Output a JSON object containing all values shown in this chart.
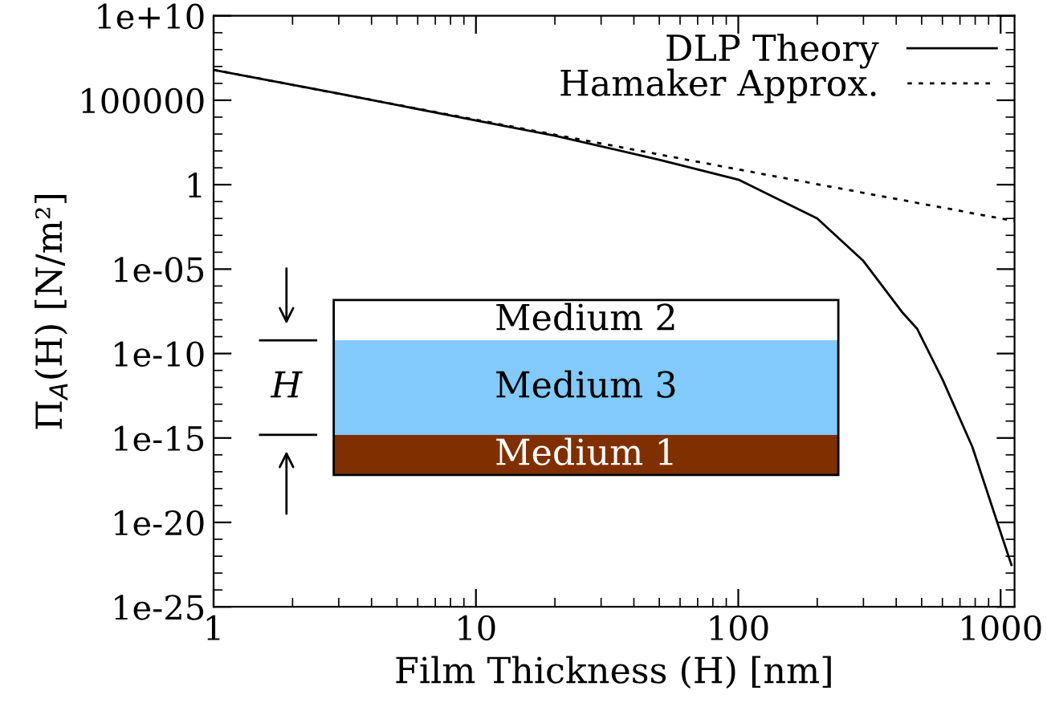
{
  "chart_data": {
    "type": "line",
    "xlabel": "Film Thickness (H) [nm]",
    "ylabel": "Π$_{A}$(H) [N/m²]",
    "log": "xy",
    "xlim": [
      1,
      1130
    ],
    "ylim": [
      1e-25,
      10000000000.0
    ],
    "xticks": [
      1,
      10,
      100,
      1000
    ],
    "yticks": [
      {
        "value": 10000000000.0,
        "label": "1e+10"
      },
      100000,
      1,
      {
        "value": 1e-05,
        "label": "1e-05"
      },
      {
        "value": 1e-10,
        "label": "1e-10"
      },
      {
        "value": 1e-15,
        "label": "1e-15"
      },
      {
        "value": 1e-20,
        "label": "1e-20"
      },
      {
        "value": 1e-25,
        "label": "1e-25"
      }
    ],
    "grid": false,
    "legend": "top right",
    "series": [
      {
        "name": "DLP Theory",
        "color": "#000000",
        "line_style": "solid",
        "x": [
          1,
          3,
          10,
          20,
          50,
          100,
          200,
          300,
          420,
          480,
          600,
          780,
          1010,
          1100
        ],
        "values": [
          6300000.0,
          250000.0,
          6300.0,
          800.0,
          30.0,
          2,
          0.01,
          3e-05,
          3e-08,
          3e-09,
          3e-12,
          3e-16,
          1.6e-21,
          3e-23
        ]
      },
      {
        "name": "Hamaker Approx.",
        "color": "#000000",
        "line_style": "dotted",
        "x": [
          1,
          10,
          100,
          1000,
          1130
        ],
        "values": [
          6300000.0,
          7000.0,
          8,
          0.01,
          0.007
        ]
      }
    ],
    "annotations": [
      "Medium 2",
      "Medium 3",
      "Medium 1",
      "H"
    ]
  }
}
